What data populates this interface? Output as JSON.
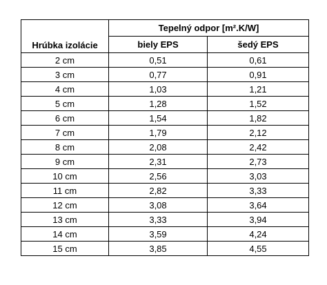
{
  "table": {
    "header": {
      "first_column": "Hrúbka izolácie",
      "group": "Tepelný odpor [m².K/W]",
      "columns": [
        "biely EPS",
        "šedý EPS"
      ]
    },
    "rows": [
      [
        "2 cm",
        "0,51",
        "0,61"
      ],
      [
        "3 cm",
        "0,77",
        "0,91"
      ],
      [
        "4 cm",
        "1,03",
        "1,21"
      ],
      [
        "5 cm",
        "1,28",
        "1,52"
      ],
      [
        "6 cm",
        "1,54",
        "1,82"
      ],
      [
        "7 cm",
        "1,79",
        "2,12"
      ],
      [
        "8 cm",
        "2,08",
        "2,42"
      ],
      [
        "9 cm",
        "2,31",
        "2,73"
      ],
      [
        "10 cm",
        "2,56",
        "3,03"
      ],
      [
        "11 cm",
        "2,82",
        "3,33"
      ],
      [
        "12 cm",
        "3,08",
        "3,64"
      ],
      [
        "13 cm",
        "3,33",
        "3,94"
      ],
      [
        "14 cm",
        "3,59",
        "4,24"
      ],
      [
        "15 cm",
        "3,85",
        "4,55"
      ]
    ]
  }
}
